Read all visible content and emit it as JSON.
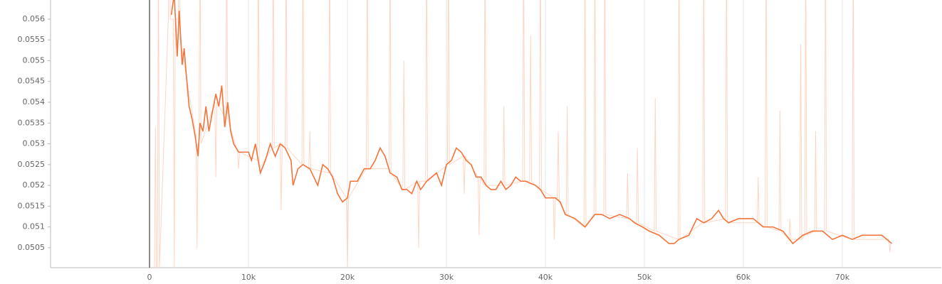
{
  "chart_data": {
    "type": "line",
    "xlim": [
      -10000,
      80000
    ],
    "ylim": [
      0.05002,
      0.05646
    ],
    "xticks": [
      0,
      {
        "value": 10000,
        "label": "10k"
      },
      {
        "value": 20000,
        "label": "20k"
      },
      {
        "value": 30000,
        "label": "30k"
      },
      {
        "value": 40000,
        "label": "40k"
      },
      {
        "value": 50000,
        "label": "50k"
      },
      {
        "value": 60000,
        "label": "60k"
      },
      {
        "value": 70000,
        "label": "70k"
      }
    ],
    "yticks": [
      0.0505,
      0.051,
      0.0515,
      0.052,
      0.0525,
      0.053,
      0.0535,
      0.054,
      0.0545,
      0.055,
      0.0555,
      0.056
    ],
    "grid": true,
    "series": [
      {
        "color": "#fcd6c4",
        "x": [
          500,
          600,
          700,
          800,
          900,
          1000,
          1900,
          2000,
          2100,
          2400,
          2500,
          2600,
          2900,
          3000,
          3100,
          4700,
          4800,
          4900,
          5000,
          5100,
          5200,
          6600,
          6700,
          6800,
          7700,
          7800,
          7900,
          8900,
          9000,
          9100,
          10900,
          11000,
          11100,
          12400,
          12500,
          12600,
          13200,
          13300,
          13400,
          13700,
          13800,
          13900,
          15400,
          15500,
          15600,
          16100,
          16200,
          16300,
          18100,
          18200,
          18300,
          19900,
          20000,
          20100,
          21900,
          22000,
          22100,
          24200,
          24300,
          24400,
          25600,
          25700,
          25800,
          27100,
          27200,
          27300,
          27900,
          28000,
          28100,
          30100,
          30200,
          30300,
          31700,
          31800,
          31900,
          33200,
          33300,
          33400,
          33800,
          33900,
          34000,
          35700,
          35800,
          35900,
          37700,
          37800,
          37900,
          38400,
          38500,
          38600,
          39400,
          39500,
          39600,
          40800,
          40900,
          41000,
          41200,
          41300,
          41400,
          42100,
          42200,
          42300,
          43900,
          44000,
          44100,
          44900,
          45000,
          45100,
          45900,
          46000,
          46100,
          48200,
          48300,
          48400,
          49200,
          49300,
          49400,
          51000,
          51100,
          51200,
          53400,
          53500,
          53600,
          55900,
          56000,
          56100,
          58200,
          58300,
          58400,
          61400,
          61500,
          61600,
          62200,
          62300,
          62400,
          63600,
          63700,
          63800,
          64600,
          64700,
          64800,
          65700,
          65800,
          65900,
          66200,
          66300,
          66400,
          67200,
          67300,
          67400,
          68200,
          68300,
          68400,
          71000,
          71100,
          71200,
          74700,
          74800,
          74900
        ],
        "values": [
          0.05,
          0.0534,
          0.05,
          0.05,
          0.058,
          0.05,
          0.056,
          0.058,
          0.056,
          0.056,
          0.05,
          0.056,
          0.056,
          0.058,
          0.0555,
          0.0532,
          0.0505,
          0.053,
          0.053,
          0.058,
          0.053,
          0.054,
          0.0522,
          0.054,
          0.0536,
          0.058,
          0.0536,
          0.0528,
          0.0524,
          0.0528,
          0.0526,
          0.058,
          0.0524,
          0.0529,
          0.058,
          0.0529,
          0.053,
          0.0514,
          0.053,
          0.0529,
          0.058,
          0.0529,
          0.0525,
          0.058,
          0.0525,
          0.0524,
          0.0533,
          0.0524,
          0.0523,
          0.058,
          0.0523,
          0.0517,
          0.05,
          0.0517,
          0.0524,
          0.058,
          0.0524,
          0.0524,
          0.058,
          0.0523,
          0.0519,
          0.055,
          0.0519,
          0.0521,
          0.0505,
          0.0521,
          0.0521,
          0.058,
          0.0521,
          0.0525,
          0.058,
          0.0525,
          0.0527,
          0.0518,
          0.0527,
          0.0522,
          0.0508,
          0.0522,
          0.052,
          0.058,
          0.052,
          0.052,
          0.0539,
          0.052,
          0.0521,
          0.058,
          0.0521,
          0.0521,
          0.0556,
          0.0521,
          0.0519,
          0.058,
          0.0519,
          0.0517,
          0.0507,
          0.0517,
          0.0517,
          0.0533,
          0.0516,
          0.0513,
          0.0539,
          0.0513,
          0.051,
          0.058,
          0.051,
          0.0513,
          0.058,
          0.0513,
          0.0513,
          0.058,
          0.0513,
          0.0512,
          0.0523,
          0.0512,
          0.0511,
          0.0529,
          0.0511,
          0.0509,
          0.0541,
          0.0509,
          0.0507,
          0.058,
          0.0507,
          0.0511,
          0.058,
          0.0511,
          0.0512,
          0.058,
          0.0511,
          0.0511,
          0.0522,
          0.0511,
          0.051,
          0.058,
          0.051,
          0.0509,
          0.0538,
          0.0509,
          0.0507,
          0.0512,
          0.0507,
          0.0507,
          0.0554,
          0.0507,
          0.0508,
          0.058,
          0.0508,
          0.0509,
          0.0533,
          0.0509,
          0.0509,
          0.058,
          0.0509,
          0.0507,
          0.058,
          0.0507,
          0.0507,
          0.0504,
          0.0506
        ]
      },
      {
        "color": "#f4743b",
        "x": [
          2200,
          2500,
          2800,
          3000,
          3300,
          3500,
          3700,
          4000,
          4300,
          4600,
          4900,
          5100,
          5400,
          5700,
          6000,
          6300,
          6700,
          7000,
          7300,
          7600,
          7900,
          8200,
          8500,
          9000,
          9500,
          10000,
          10300,
          10700,
          11200,
          11700,
          12200,
          12700,
          13200,
          13700,
          14300,
          14500,
          15000,
          15500,
          16200,
          17000,
          17500,
          18000,
          18500,
          19000,
          19500,
          20000,
          20300,
          21000,
          21700,
          22300,
          22800,
          23300,
          23800,
          24300,
          25000,
          25500,
          26000,
          26500,
          27000,
          27400,
          28000,
          28500,
          29000,
          29500,
          30000,
          30500,
          31000,
          31500,
          32000,
          32500,
          33000,
          33500,
          34000,
          34500,
          35000,
          35500,
          36000,
          36500,
          37000,
          37500,
          38000,
          39000,
          39500,
          40000,
          41000,
          41500,
          42000,
          43000,
          44000,
          45000,
          45700,
          46500,
          47500,
          48500,
          49000,
          49800,
          50500,
          51500,
          52500,
          53000,
          53500,
          54500,
          55300,
          56000,
          56800,
          57500,
          58000,
          58500,
          59500,
          61000,
          62000,
          63000,
          64000,
          65000,
          66000,
          67000,
          68000,
          69000,
          70000,
          71000,
          72000,
          73000,
          74000,
          75000
        ],
        "values": [
          0.0561,
          0.0566,
          0.0551,
          0.0562,
          0.0549,
          0.0553,
          0.0547,
          0.0539,
          0.0536,
          0.0532,
          0.0527,
          0.0535,
          0.0533,
          0.0539,
          0.0533,
          0.0537,
          0.0542,
          0.0539,
          0.0544,
          0.0534,
          0.054,
          0.0533,
          0.053,
          0.0528,
          0.0528,
          0.0528,
          0.0526,
          0.053,
          0.0523,
          0.0526,
          0.053,
          0.0527,
          0.053,
          0.0529,
          0.0526,
          0.052,
          0.0524,
          0.0525,
          0.0524,
          0.052,
          0.0525,
          0.0524,
          0.0522,
          0.0518,
          0.0516,
          0.0517,
          0.0521,
          0.0521,
          0.0524,
          0.0524,
          0.0526,
          0.0529,
          0.0527,
          0.0523,
          0.0522,
          0.0519,
          0.0519,
          0.0518,
          0.0521,
          0.0519,
          0.0521,
          0.0522,
          0.0523,
          0.052,
          0.0525,
          0.0526,
          0.0529,
          0.0528,
          0.0526,
          0.0525,
          0.0522,
          0.0522,
          0.052,
          0.0519,
          0.0519,
          0.0521,
          0.0519,
          0.052,
          0.0522,
          0.0521,
          0.0521,
          0.052,
          0.0519,
          0.0517,
          0.0517,
          0.0516,
          0.0513,
          0.0512,
          0.051,
          0.0513,
          0.0513,
          0.0512,
          0.0513,
          0.0512,
          0.0511,
          0.051,
          0.0509,
          0.0508,
          0.0506,
          0.0506,
          0.0507,
          0.0508,
          0.0512,
          0.0511,
          0.0512,
          0.0514,
          0.0512,
          0.0511,
          0.0512,
          0.0512,
          0.051,
          0.051,
          0.0509,
          0.0506,
          0.0508,
          0.0509,
          0.0509,
          0.0507,
          0.0508,
          0.0507,
          0.0508,
          0.0508,
          0.0508,
          0.0506
        ]
      }
    ]
  }
}
